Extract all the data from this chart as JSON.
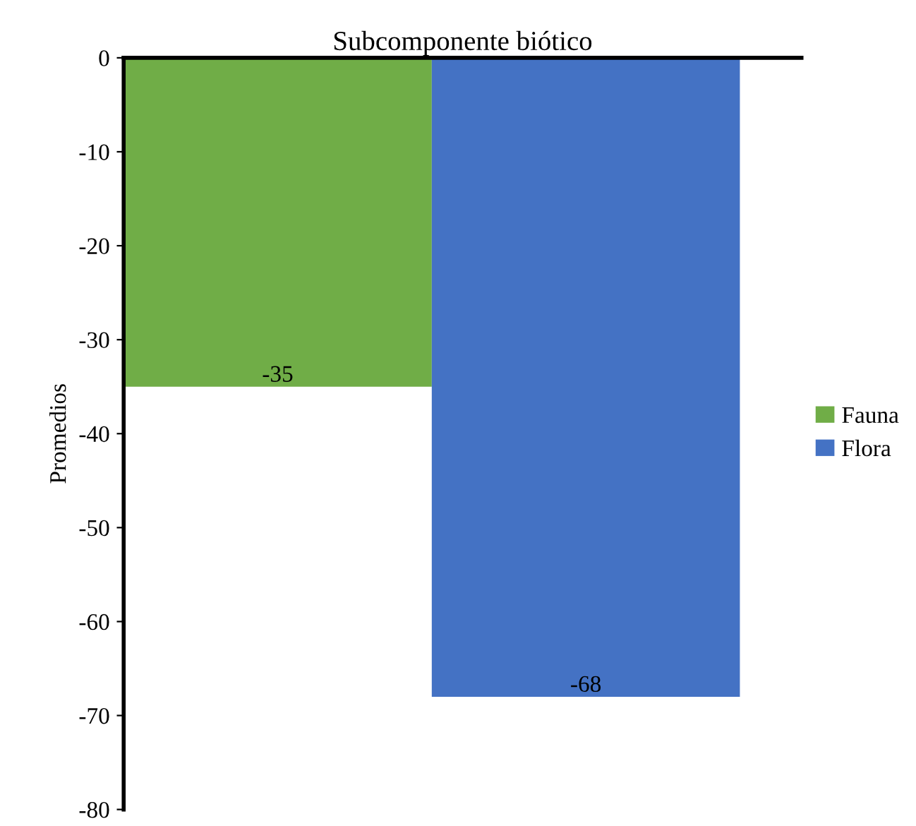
{
  "chart_data": {
    "type": "bar",
    "title": "Subcomponente biótico",
    "ylabel": "Promedios",
    "categories": [
      null
    ],
    "series": [
      {
        "name": "Fauna",
        "color": "#70ad47",
        "values": [
          -35
        ]
      },
      {
        "name": "Flora",
        "color": "#4472c4",
        "values": [
          -68
        ]
      }
    ],
    "ylim": [
      -80,
      0
    ],
    "yticks": [
      0,
      -10,
      -20,
      -30,
      -40,
      -50,
      -60,
      -70,
      -80
    ],
    "data_labels": true,
    "legend": "right",
    "grid": false
  }
}
